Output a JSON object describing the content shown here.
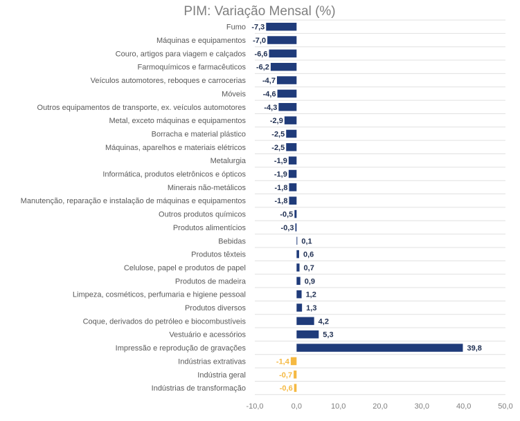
{
  "chart_data": {
    "type": "bar",
    "orientation": "horizontal",
    "title": "PIM: Variação Mensal (%)",
    "xlim": [
      -10,
      50
    ],
    "x_ticks": [
      "-10,0",
      "0,0",
      "10,0",
      "20,0",
      "30,0",
      "40,0",
      "50,0"
    ],
    "grid": true,
    "colors": {
      "sector": "#1f3b7a",
      "aggregate": "#f5b942"
    },
    "categories": [
      "Fumo",
      "Máquinas e equipamentos",
      "Couro, artigos para viagem e calçados",
      "Farmoquímicos e farmacêuticos",
      "Veículos automotores, reboques e carrocerias",
      "Móveis",
      "Outros equipamentos de transporte, ex. veículos automotores",
      "Metal, exceto máquinas e equipamentos",
      "Borracha e material plástico",
      "Máquinas, aparelhos e materiais elétricos",
      "Metalurgia",
      "Informática, produtos eletrônicos e ópticos",
      "Minerais não-metálicos",
      "Manutenção, reparação e instalação de máquinas e equipamentos",
      "Outros produtos químicos",
      "Produtos alimentícios",
      "Bebidas",
      "Produtos têxteis",
      "Celulose, papel e produtos de papel",
      "Produtos de madeira",
      "Limpeza, cosméticos, perfumaria e higiene pessoal",
      "Produtos diversos",
      "Coque, derivados do petróleo e biocombustíveis",
      "Vestuário e acessórios",
      "Impressão e reprodução de gravações",
      "Indústrias extrativas",
      "Indústria geral",
      "Indústrias de transformação"
    ],
    "values": [
      -7.3,
      -7.0,
      -6.6,
      -6.2,
      -4.7,
      -4.6,
      -4.3,
      -2.9,
      -2.5,
      -2.5,
      -1.9,
      -1.9,
      -1.8,
      -1.8,
      -0.5,
      -0.3,
      0.1,
      0.6,
      0.7,
      0.9,
      1.2,
      1.3,
      4.2,
      5.3,
      39.8,
      -1.4,
      -0.7,
      -0.6
    ],
    "labels": [
      "-7,3",
      "-7,0",
      "-6,6",
      "-6,2",
      "-4,7",
      "-4,6",
      "-4,3",
      "-2,9",
      "-2,5",
      "-2,5",
      "-1,9",
      "-1,9",
      "-1,8",
      "-1,8",
      "-0,5",
      "-0,3",
      "0,1",
      "0,6",
      "0,7",
      "0,9",
      "1,2",
      "1,3",
      "4,2",
      "5,3",
      "39,8",
      "-1,4",
      "-0,7",
      "-0,6"
    ],
    "aggregates": [
      "Indústrias extrativas",
      "Indústria geral",
      "Indústrias de transformação"
    ]
  }
}
